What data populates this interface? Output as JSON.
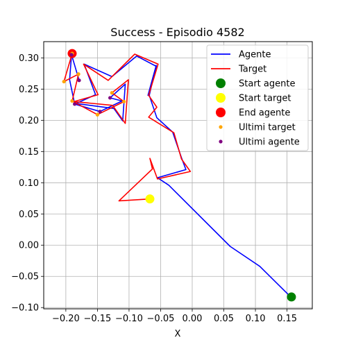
{
  "chart_data": {
    "type": "line",
    "title": "Success - Episodio 4582",
    "xlabel": "X",
    "ylabel": "",
    "xlim": [
      -0.235,
      0.19
    ],
    "ylim": [
      -0.102,
      0.326
    ],
    "xticks": [
      -0.2,
      -0.15,
      -0.1,
      -0.05,
      0.0,
      0.05,
      0.1,
      0.15
    ],
    "xtick_labels": [
      "−0.20",
      "−0.15",
      "−0.10",
      "−0.05",
      "0.00",
      "0.05",
      "0.10",
      "0.15"
    ],
    "yticks": [
      -0.1,
      -0.05,
      0.0,
      0.05,
      0.1,
      0.15,
      0.2,
      0.25,
      0.3
    ],
    "ytick_labels": [
      "−0.10",
      "−0.05",
      "0.00",
      "0.05",
      "0.10",
      "0.15",
      "0.20",
      "0.25",
      "0.30"
    ],
    "grid": true,
    "legend_position": "top-right",
    "series": [
      {
        "name": "Agente",
        "kind": "line",
        "color": "#0000ff",
        "x": [
          0.156,
          0.107,
          0.06,
          -0.037,
          -0.055,
          -0.01,
          -0.017,
          -0.031,
          -0.056,
          -0.068,
          -0.057,
          -0.07,
          -0.056,
          -0.088,
          -0.127,
          -0.171,
          -0.153,
          -0.184,
          -0.124,
          -0.11,
          -0.106,
          -0.13,
          -0.111,
          -0.146,
          -0.186,
          -0.194,
          -0.191,
          -0.179
        ],
        "y": [
          -0.083,
          -0.034,
          -0.002,
          0.096,
          0.108,
          0.121,
          0.14,
          0.181,
          0.204,
          0.24,
          0.288,
          0.24,
          0.286,
          0.303,
          0.27,
          0.29,
          0.241,
          0.227,
          0.219,
          0.199,
          0.258,
          0.236,
          0.231,
          0.214,
          0.226,
          0.265,
          0.305,
          0.264
        ]
      },
      {
        "name": "Target",
        "kind": "line",
        "color": "#ff0000",
        "x": [
          -0.067,
          -0.116,
          -0.063,
          -0.067,
          -0.055,
          -0.003,
          -0.017,
          -0.029,
          -0.069,
          -0.056,
          -0.069,
          -0.054,
          -0.091,
          -0.133,
          -0.172,
          -0.149,
          -0.187,
          -0.126,
          -0.106,
          -0.101,
          -0.127,
          -0.108,
          -0.15,
          -0.19,
          -0.18,
          -0.203,
          -0.19
        ],
        "y": [
          0.074,
          0.071,
          0.122,
          0.139,
          0.106,
          0.118,
          0.138,
          0.18,
          0.205,
          0.221,
          0.24,
          0.29,
          0.306,
          0.264,
          0.29,
          0.241,
          0.23,
          0.224,
          0.195,
          0.265,
          0.244,
          0.23,
          0.209,
          0.231,
          0.274,
          0.262,
          0.307
        ]
      },
      {
        "name": "Start agente",
        "kind": "marker",
        "color": "#008000",
        "x": [
          0.157
        ],
        "y": [
          -0.083
        ],
        "size": "large"
      },
      {
        "name": "Start target",
        "kind": "marker",
        "color": "#ffff00",
        "x": [
          -0.067
        ],
        "y": [
          0.074
        ],
        "size": "large"
      },
      {
        "name": "End agente",
        "kind": "marker",
        "color": "#ff0000",
        "x": [
          -0.19
        ],
        "y": [
          0.307
        ],
        "size": "large"
      },
      {
        "name": "Ultimi target",
        "kind": "marker",
        "color": "#ffa500",
        "x": [
          -0.203,
          -0.19,
          -0.18,
          -0.15,
          -0.127,
          -0.108,
          -0.19
        ],
        "y": [
          0.262,
          0.231,
          0.274,
          0.209,
          0.244,
          0.23,
          0.307
        ],
        "size": "small"
      },
      {
        "name": "Ultimi agente",
        "kind": "marker",
        "color": "#800080",
        "x": [
          -0.179,
          -0.146,
          -0.186,
          -0.13,
          -0.191
        ],
        "y": [
          0.264,
          0.214,
          0.226,
          0.236,
          0.305
        ],
        "size": "small"
      }
    ],
    "legend": [
      {
        "label": "Agente",
        "type": "line",
        "color": "#0000ff"
      },
      {
        "label": "Target",
        "type": "line",
        "color": "#ff0000"
      },
      {
        "label": "Start agente",
        "type": "dot-large",
        "color": "#008000"
      },
      {
        "label": "Start target",
        "type": "dot-large",
        "color": "#ffff00"
      },
      {
        "label": "End agente",
        "type": "dot-large",
        "color": "#ff0000"
      },
      {
        "label": "Ultimi target",
        "type": "dot-small",
        "color": "#ffa500"
      },
      {
        "label": "Ultimi agente",
        "type": "dot-small",
        "color": "#800080"
      }
    ]
  }
}
